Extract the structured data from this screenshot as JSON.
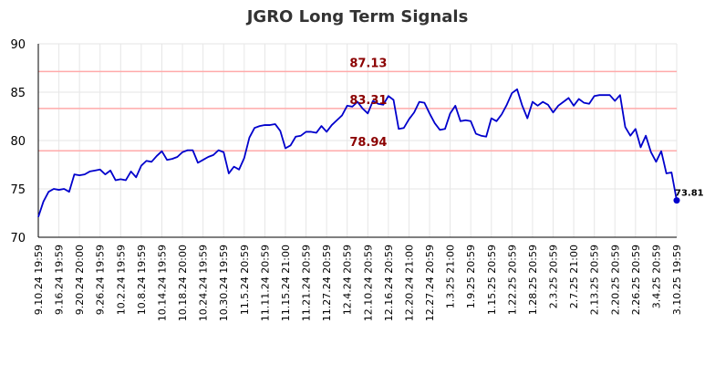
{
  "chart_data": {
    "type": "line",
    "title": "JGRO Long Term Signals",
    "xlabel": "",
    "ylabel": "",
    "ylim": [
      70,
      90
    ],
    "yticks": [
      70,
      75,
      80,
      85,
      90
    ],
    "grid": true,
    "x_tick_labels": [
      "9.10.24 19:59",
      "9.16.24 19:59",
      "9.20.24 20:00",
      "9.26.24 19:59",
      "10.2.24 19:59",
      "10.8.24 19:59",
      "10.14.24 19:59",
      "10.18.24 20:00",
      "10.24.24 19:59",
      "10.30.24 19:59",
      "11.5.24 20:59",
      "11.11.24 20:59",
      "11.15.24 21:00",
      "11.21.24 20:59",
      "11.27.24 20:59",
      "12.4.24 20:59",
      "12.10.24 20:59",
      "12.16.24 20:59",
      "12.20.24 21:00",
      "12.27.24 20:59",
      "1.3.25 21:00",
      "1.9.25 20:59",
      "1.15.25 20:59",
      "1.22.25 20:59",
      "1.28.25 20:59",
      "2.3.25 20:59",
      "2.7.25 21:00",
      "2.13.25 20:59",
      "2.20.25 20:59",
      "2.26.25 20:59",
      "3.4.25 20:59",
      "3.10.25 19:59"
    ],
    "series": [
      {
        "color": "#0000cc",
        "values": [
          72.1,
          73.7,
          74.7,
          75.0,
          74.9,
          75.0,
          74.7,
          76.5,
          76.4,
          76.5,
          76.8,
          76.9,
          77.0,
          76.5,
          76.9,
          75.9,
          76.0,
          75.9,
          76.8,
          76.2,
          77.4,
          77.9,
          77.8,
          78.4,
          78.9,
          78.0,
          78.1,
          78.3,
          78.8,
          79.0,
          79.0,
          77.7,
          78.0,
          78.3,
          78.5,
          79.0,
          78.8,
          76.6,
          77.3,
          77.0,
          78.2,
          80.3,
          81.3,
          81.5,
          81.6,
          81.6,
          81.7,
          81.0,
          79.2,
          79.5,
          80.4,
          80.5,
          80.9,
          80.9,
          80.8,
          81.5,
          80.9,
          81.6,
          82.1,
          82.6,
          83.6,
          83.5,
          84.0,
          83.3,
          82.8,
          84.1,
          83.8,
          83.7,
          84.6,
          84.2,
          81.2,
          81.3,
          82.2,
          82.9,
          84.0,
          83.9,
          82.8,
          81.8,
          81.1,
          81.2,
          82.8,
          83.6,
          82.0,
          82.1,
          82.0,
          80.7,
          80.5,
          80.4,
          82.3,
          82.0,
          82.7,
          83.7,
          84.9,
          85.3,
          83.6,
          82.3,
          84.0,
          83.6,
          84.0,
          83.7,
          82.9,
          83.6,
          84.0,
          84.4,
          83.6,
          84.3,
          83.9,
          83.8,
          84.6,
          84.7,
          84.7,
          84.7,
          84.1,
          84.7,
          81.4,
          80.5,
          81.2,
          79.3,
          80.5,
          78.8,
          77.8,
          78.9,
          76.6,
          76.7,
          73.81
        ]
      }
    ],
    "reference_lines": [
      {
        "value": 87.13,
        "label": "87.13",
        "color": "#ffaaaa"
      },
      {
        "value": 83.31,
        "label": "83.31",
        "color": "#ffaaaa"
      },
      {
        "value": 78.94,
        "label": "78.94",
        "color": "#ffaaaa"
      }
    ],
    "last_point": {
      "value": 73.81,
      "label": "73.81"
    }
  }
}
